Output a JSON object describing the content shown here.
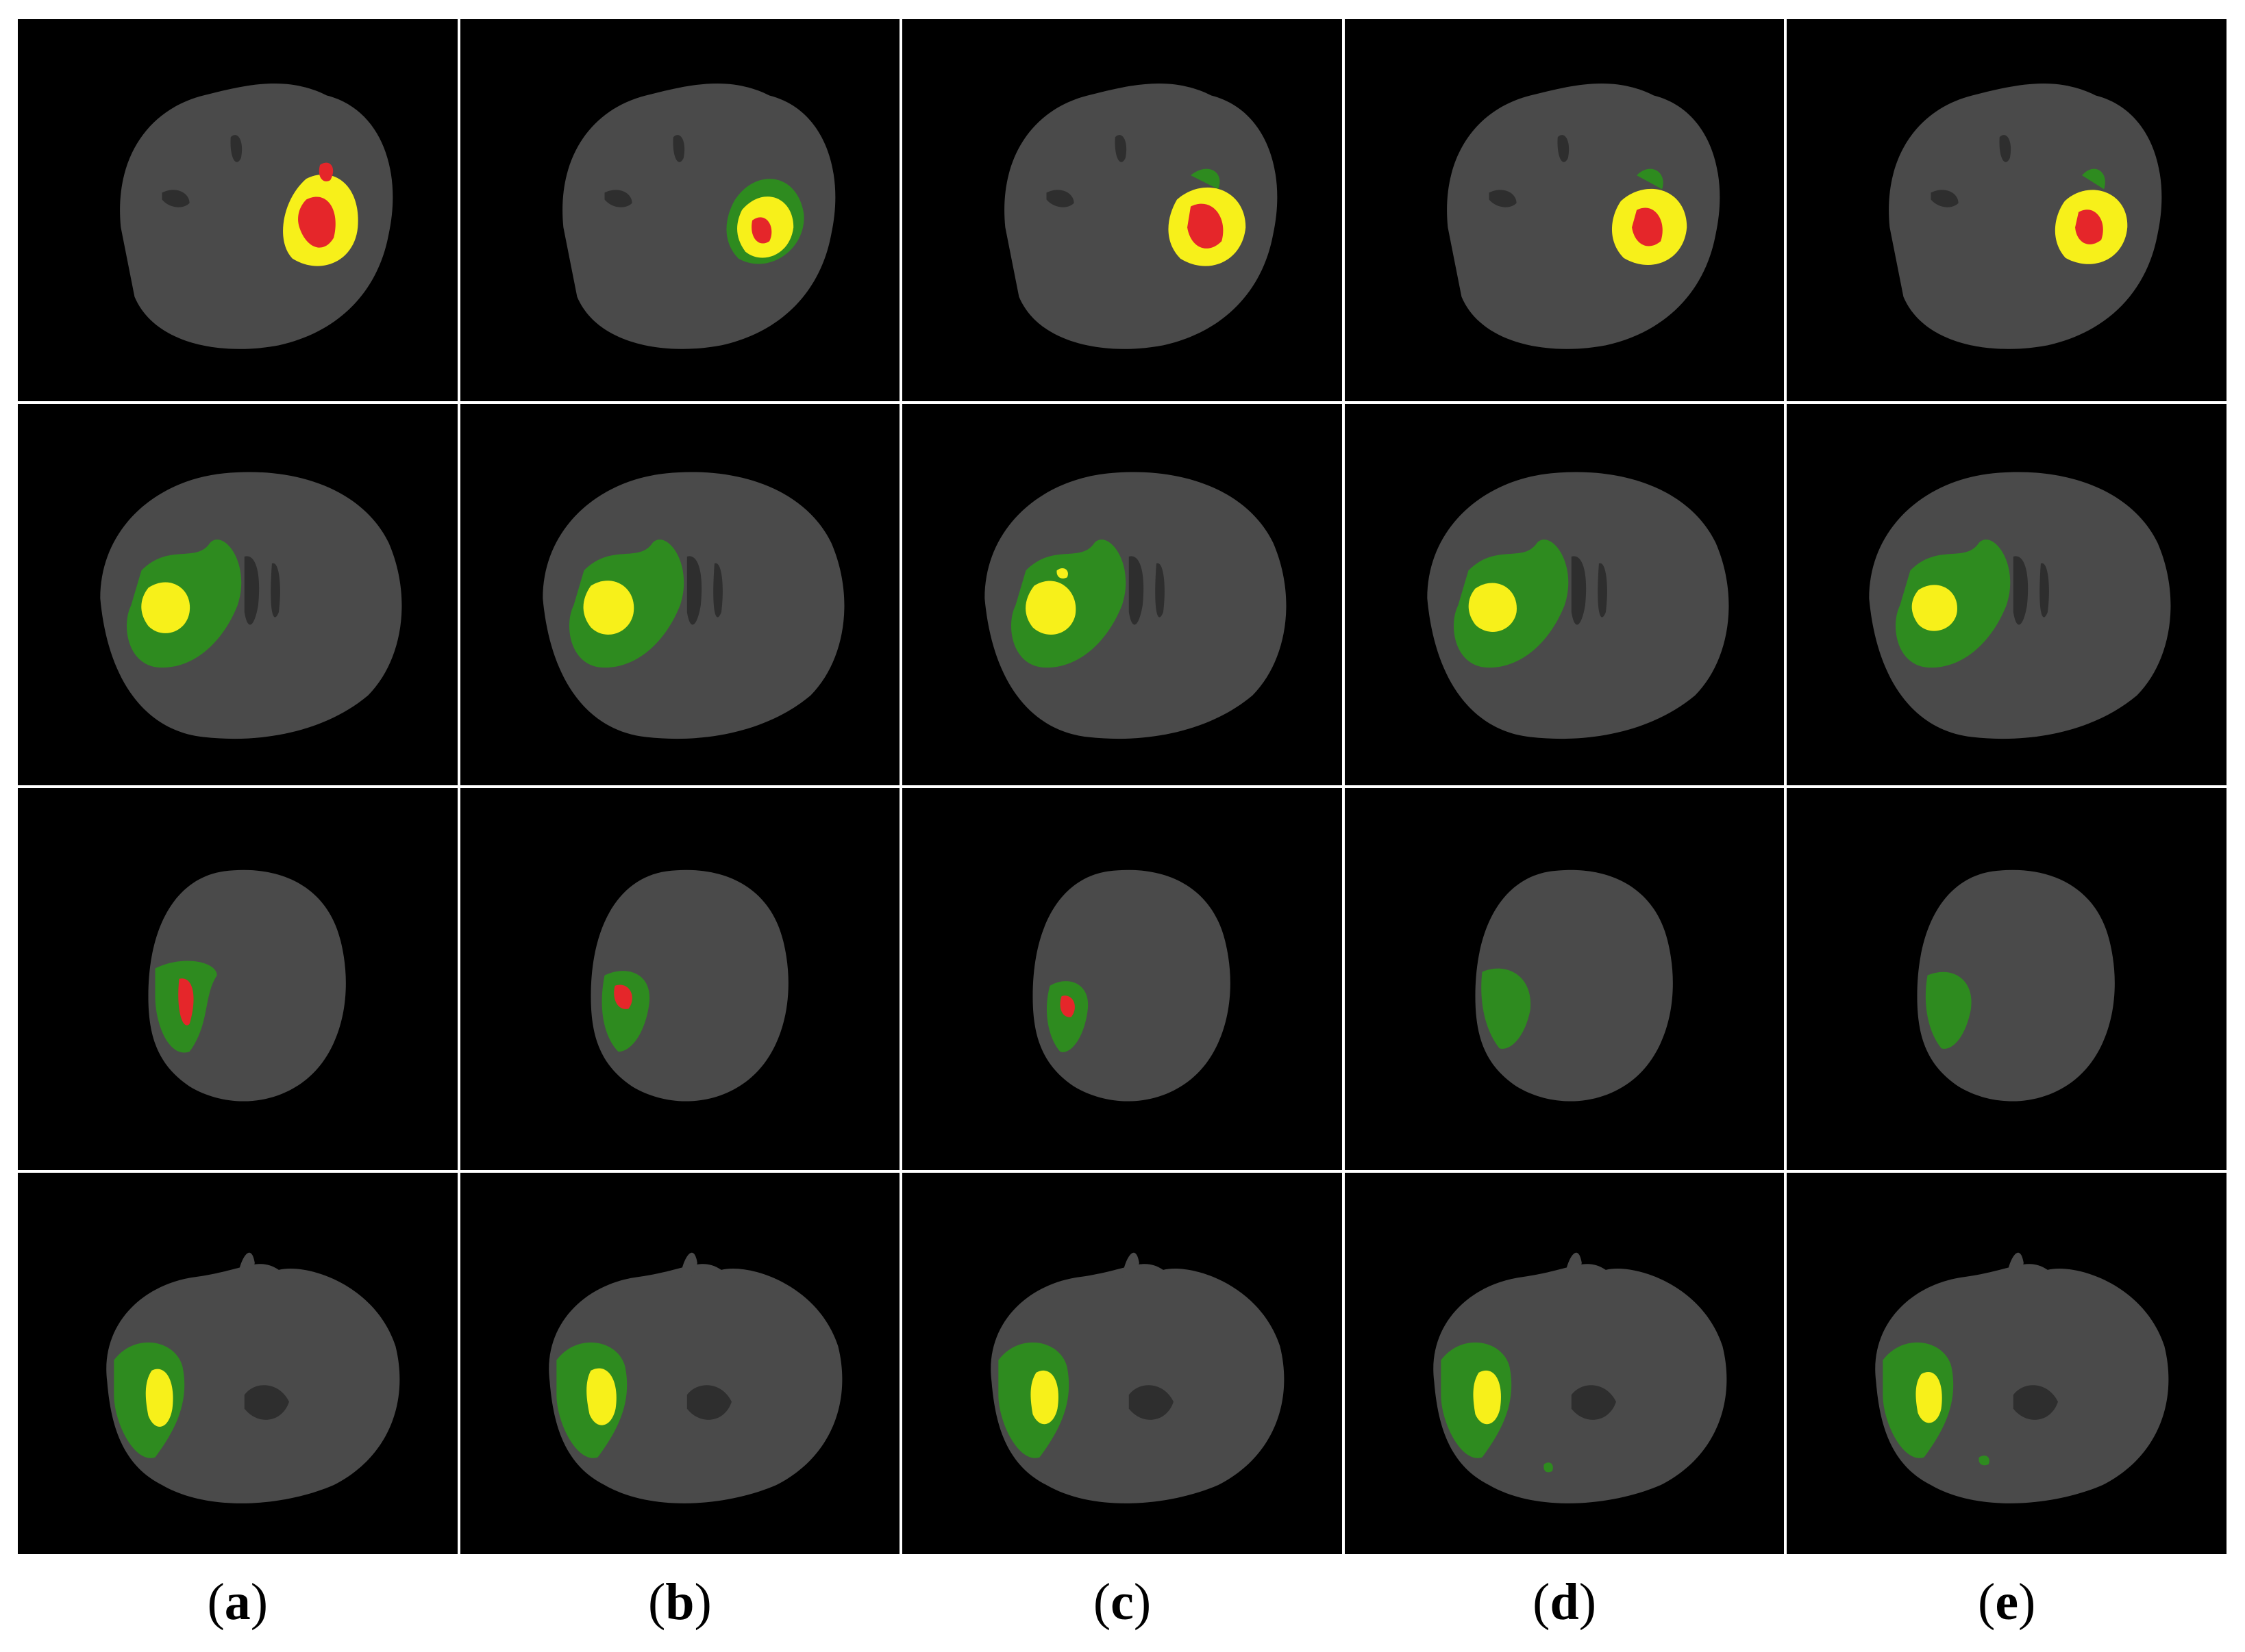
{
  "figure": {
    "column_labels": [
      {
        "open": "(",
        "letter": "a",
        "close": ")"
      },
      {
        "open": "(",
        "letter": "b",
        "close": ")"
      },
      {
        "open": "(",
        "letter": "c",
        "close": ")"
      },
      {
        "open": "(",
        "letter": "d",
        "close": ")"
      },
      {
        "open": "(",
        "letter": "e",
        "close": ")"
      }
    ],
    "rows": 4,
    "columns": 5,
    "colors": {
      "background": "#000000",
      "brain": "#4a4a4a",
      "edema": "#2e8b1f",
      "enhancing": "#f7f01a",
      "necrotic": "#e5262a",
      "divider": "#ffffff"
    }
  }
}
